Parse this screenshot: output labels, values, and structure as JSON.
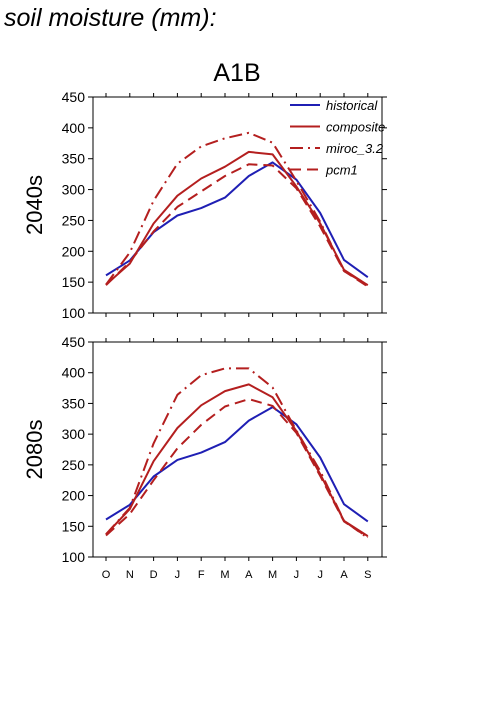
{
  "page": {
    "title": "soil moisture (mm):"
  },
  "colors": {
    "historical": "#1f1fb4",
    "projection": "#b41f1f"
  },
  "chart_data": {
    "type": "line",
    "title": "A1B",
    "categories": [
      "O",
      "N",
      "D",
      "J",
      "F",
      "M",
      "A",
      "M",
      "J",
      "J",
      "A",
      "S"
    ],
    "ylim": [
      100,
      450
    ],
    "yticks": [
      100,
      150,
      200,
      250,
      300,
      350,
      400,
      450
    ],
    "legend": {
      "position": "top-right",
      "entries": [
        {
          "name": "historical",
          "color": "#1f1fb4",
          "style": "solid"
        },
        {
          "name": "composite",
          "color": "#b41f1f",
          "style": "solid"
        },
        {
          "name": "miroc_3.2",
          "color": "#b41f1f",
          "style": "dashdot"
        },
        {
          "name": "pcm1",
          "color": "#b41f1f",
          "style": "dashed"
        }
      ]
    },
    "panels": [
      {
        "ylabel": "2040s",
        "series": [
          {
            "name": "historical",
            "color": "#1f1fb4",
            "style": "solid",
            "values": [
              161,
              185,
              231,
              258,
              270,
              287,
              322,
              344,
              316,
              262,
              186,
              158
            ]
          },
          {
            "name": "composite",
            "color": "#b41f1f",
            "style": "solid",
            "values": [
              146,
              180,
              245,
              290,
              318,
              337,
              361,
              357,
              305,
              245,
              170,
              145
            ]
          },
          {
            "name": "miroc_3.2",
            "color": "#b41f1f",
            "style": "dashdot",
            "values": [
              146,
              198,
              282,
              342,
              370,
              383,
              392,
              376,
              314,
              248,
              168,
              145
            ]
          },
          {
            "name": "pcm1",
            "color": "#b41f1f",
            "style": "dashed",
            "values": [
              145,
              183,
              232,
              272,
              297,
              322,
              341,
              339,
              302,
              240,
              168,
              143
            ]
          }
        ]
      },
      {
        "ylabel": "2080s",
        "series": [
          {
            "name": "historical",
            "color": "#1f1fb4",
            "style": "solid",
            "values": [
              161,
              185,
              231,
              258,
              270,
              287,
              322,
              344,
              316,
              262,
              186,
              158
            ]
          },
          {
            "name": "composite",
            "color": "#b41f1f",
            "style": "solid",
            "values": [
              137,
              178,
              256,
              310,
              347,
              370,
              381,
              360,
              305,
              235,
              159,
              134
            ]
          },
          {
            "name": "miroc_3.2",
            "color": "#b41f1f",
            "style": "dashdot",
            "values": [
              137,
              180,
              285,
              364,
              396,
              407,
              407,
              376,
              306,
              240,
              159,
              131
            ]
          },
          {
            "name": "pcm1",
            "color": "#b41f1f",
            "style": "dashed",
            "values": [
              135,
              170,
              225,
              277,
              315,
              345,
              357,
              346,
              302,
              232,
              158,
              132
            ]
          }
        ]
      }
    ]
  }
}
